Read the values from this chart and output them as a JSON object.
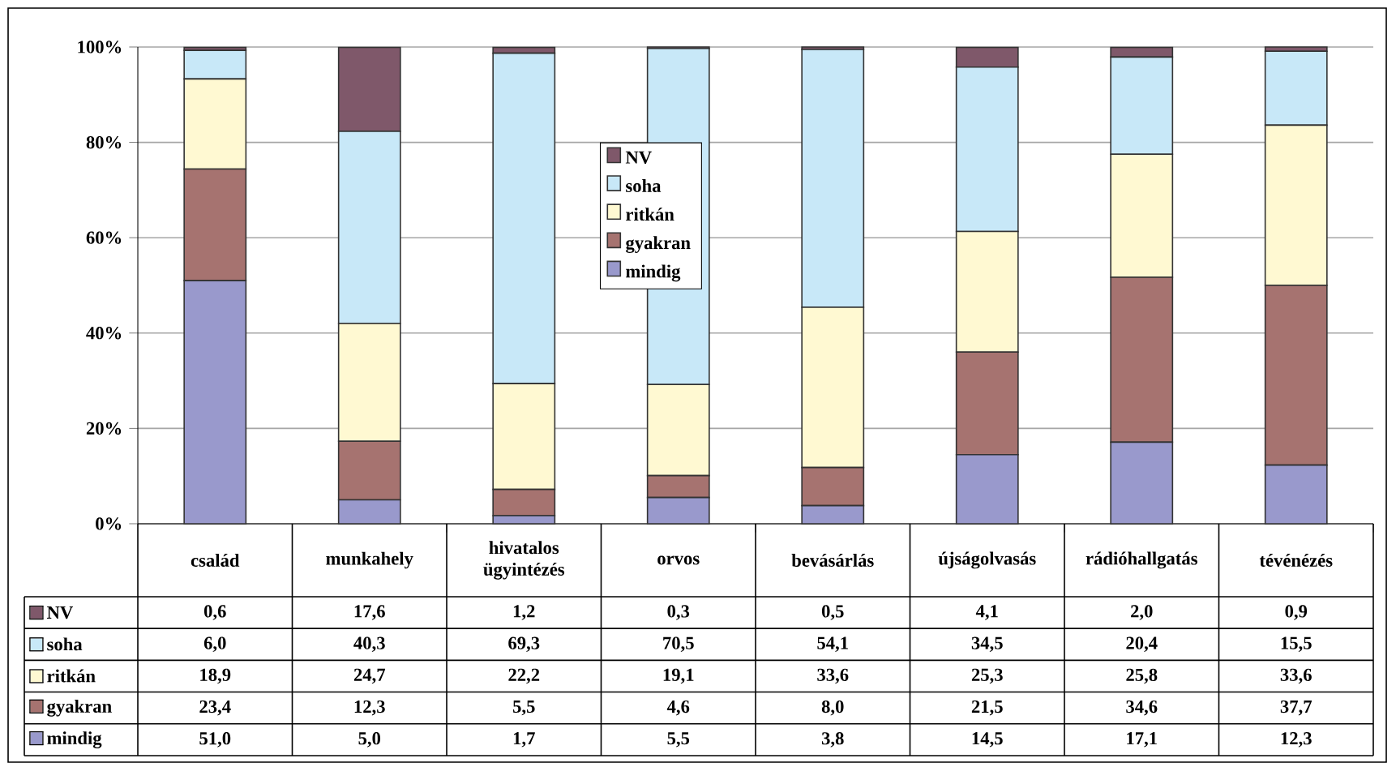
{
  "chart_data": {
    "type": "bar",
    "stacked": true,
    "categories": [
      "család",
      "munkahely",
      "hivatalos ügyintézés",
      "orvos",
      "bevásárlás",
      "újságolvasás",
      "rádióhallgatás",
      "tévénézés"
    ],
    "series": [
      {
        "name": "mindig",
        "color": "#9999cc",
        "values": [
          51.0,
          5.0,
          1.7,
          5.5,
          3.8,
          14.5,
          17.1,
          12.3
        ],
        "value_labels": [
          "51,0",
          "5,0",
          "1,7",
          "5,5",
          "3,8",
          "14,5",
          "17,1",
          "12,3"
        ]
      },
      {
        "name": "gyakran",
        "color": "#a67370",
        "values": [
          23.4,
          12.3,
          5.5,
          4.6,
          8.0,
          21.5,
          34.6,
          37.7
        ],
        "value_labels": [
          "23,4",
          "12,3",
          "5,5",
          "4,6",
          "8,0",
          "21,5",
          "34,6",
          "37,7"
        ]
      },
      {
        "name": "ritkán",
        "color": "#fff9d2",
        "values": [
          18.9,
          24.7,
          22.2,
          19.1,
          33.6,
          25.3,
          25.8,
          33.6
        ],
        "value_labels": [
          "18,9",
          "24,7",
          "22,2",
          "19,1",
          "33,6",
          "25,3",
          "25,8",
          "33,6"
        ]
      },
      {
        "name": "soha",
        "color": "#c8e8f8",
        "values": [
          6.0,
          40.3,
          69.3,
          70.5,
          54.1,
          34.5,
          20.4,
          15.5
        ],
        "value_labels": [
          "6,0",
          "40,3",
          "69,3",
          "70,5",
          "54,1",
          "34,5",
          "20,4",
          "15,5"
        ]
      },
      {
        "name": "NV",
        "color": "#7f586a",
        "values": [
          0.6,
          17.6,
          1.2,
          0.3,
          0.5,
          4.1,
          2.0,
          0.9
        ],
        "value_labels": [
          "0,6",
          "17,6",
          "1,2",
          "0,3",
          "0,5",
          "4,1",
          "2,0",
          "0,9"
        ]
      }
    ],
    "ylim": [
      0,
      100
    ],
    "yticks": [
      {
        "value": 0,
        "label": "0%"
      },
      {
        "value": 20,
        "label": "20%"
      },
      {
        "value": 40,
        "label": "40%"
      },
      {
        "value": 60,
        "label": "60%"
      },
      {
        "value": 80,
        "label": "80%"
      },
      {
        "value": 100,
        "label": "100%"
      }
    ],
    "grid": "y",
    "legend": "top"
  }
}
